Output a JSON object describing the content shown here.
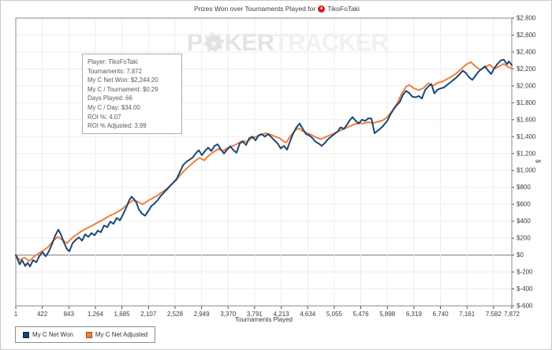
{
  "title": {
    "text": "Prizes Won over Tournaments Played for",
    "player": "TikoFoTaki"
  },
  "icons": {
    "title_chip_spade": "♠",
    "watermark_chip_spade": "♠"
  },
  "watermark": {
    "left": "P",
    "mid": "KER",
    "right": "TRACKER"
  },
  "info_box": {
    "lines": [
      "Player: TikoFoTaki",
      "Tournaments: 7,872",
      "My C Net Won: $2,244.20",
      "My C / Tournament: $0.29",
      "Days Played: 66",
      "My C / Day: $34.00",
      "ROI %: 4.07",
      "ROI % Adjusted: 3.99"
    ]
  },
  "legend": {
    "items": [
      {
        "label": "My C Net Won",
        "color": "#17456e"
      },
      {
        "label": "My C Net Adjusted",
        "color": "#ee7f3b"
      }
    ]
  },
  "colors": {
    "net_won_line": "#1a4876",
    "net_adjusted_line": "#ee7f3b",
    "grid": "#ededed",
    "zero_line": "#7a7a7a",
    "plot_border": "#9b9b9b",
    "tick": "#4a4a4a",
    "tick_label": "#3c3c3c"
  },
  "chart_data": {
    "type": "line",
    "title": "Prizes Won over Tournaments Played for TikoFoTaki",
    "xlabel": "Tournaments Played",
    "ylabel": "$",
    "grid": true,
    "legend_position": "bottom-left",
    "xlim": [
      1,
      7872
    ],
    "ylim": [
      -600,
      2800
    ],
    "x_ticks": [
      1,
      422,
      843,
      1264,
      1685,
      2107,
      2528,
      2949,
      3370,
      3791,
      4213,
      4634,
      5055,
      5476,
      5898,
      6319,
      6740,
      7161,
      7582,
      7872
    ],
    "x_tick_labels": [
      "1",
      "422",
      "843",
      "1,264",
      "1,685",
      "2,107",
      "2,528",
      "2,949",
      "3,370",
      "3,791",
      "4,213",
      "4,634",
      "5,055",
      "5,476",
      "5,898",
      "6,319",
      "6,740",
      "7,161",
      "7,582",
      "7,872"
    ],
    "y_ticks": [
      -600,
      -400,
      -200,
      0,
      200,
      400,
      600,
      800,
      1000,
      1200,
      1400,
      1600,
      1800,
      2000,
      2200,
      2400,
      2600,
      2800
    ],
    "y_tick_labels": [
      "$-600",
      "$-400",
      "$-200",
      "$0",
      "$200",
      "$400",
      "$600",
      "$800",
      "$1,000",
      "$1,200",
      "$1,400",
      "$1,600",
      "$1,800",
      "$2,000",
      "$2,200",
      "$2,400",
      "$2,600",
      "$2,800"
    ],
    "series": [
      {
        "name": "My C Net Adjusted",
        "color": "#ee7f3b",
        "points": [
          [
            1,
            0
          ],
          [
            64,
            -60
          ],
          [
            139,
            -30
          ],
          [
            214,
            -70
          ],
          [
            289,
            -20
          ],
          [
            364,
            20
          ],
          [
            439,
            55
          ],
          [
            514,
            95
          ],
          [
            589,
            165
          ],
          [
            664,
            215
          ],
          [
            739,
            180
          ],
          [
            814,
            140
          ],
          [
            889,
            200
          ],
          [
            964,
            240
          ],
          [
            1039,
            280
          ],
          [
            1114,
            310
          ],
          [
            1190,
            340
          ],
          [
            1265,
            370
          ],
          [
            1340,
            400
          ],
          [
            1415,
            430
          ],
          [
            1490,
            465
          ],
          [
            1565,
            490
          ],
          [
            1640,
            520
          ],
          [
            1715,
            560
          ],
          [
            1790,
            610
          ],
          [
            1866,
            650
          ],
          [
            1941,
            630
          ],
          [
            2016,
            600
          ],
          [
            2091,
            640
          ],
          [
            2166,
            670
          ],
          [
            2241,
            700
          ],
          [
            2316,
            740
          ],
          [
            2391,
            780
          ],
          [
            2466,
            830
          ],
          [
            2541,
            880
          ],
          [
            2617,
            950
          ],
          [
            2692,
            1010
          ],
          [
            2767,
            1060
          ],
          [
            2842,
            1110
          ],
          [
            2917,
            1150
          ],
          [
            2992,
            1120
          ],
          [
            3067,
            1180
          ],
          [
            3142,
            1220
          ],
          [
            3217,
            1255
          ],
          [
            3292,
            1230
          ],
          [
            3368,
            1270
          ],
          [
            3443,
            1290
          ],
          [
            3518,
            1315
          ],
          [
            3593,
            1350
          ],
          [
            3668,
            1340
          ],
          [
            3743,
            1380
          ],
          [
            3818,
            1400
          ],
          [
            3893,
            1420
          ],
          [
            3968,
            1440
          ],
          [
            4043,
            1425
          ],
          [
            4118,
            1400
          ],
          [
            4193,
            1380
          ],
          [
            4243,
            1350
          ],
          [
            4293,
            1330
          ],
          [
            4344,
            1390
          ],
          [
            4394,
            1440
          ],
          [
            4444,
            1480
          ],
          [
            4494,
            1500
          ],
          [
            4544,
            1470
          ],
          [
            4619,
            1445
          ],
          [
            4694,
            1420
          ],
          [
            4769,
            1390
          ],
          [
            4844,
            1370
          ],
          [
            4919,
            1395
          ],
          [
            4994,
            1420
          ],
          [
            5069,
            1445
          ],
          [
            5145,
            1470
          ],
          [
            5220,
            1495
          ],
          [
            5295,
            1520
          ],
          [
            5370,
            1545
          ],
          [
            5445,
            1560
          ],
          [
            5520,
            1555
          ],
          [
            5595,
            1570
          ],
          [
            5670,
            1560
          ],
          [
            5745,
            1575
          ],
          [
            5820,
            1590
          ],
          [
            5895,
            1630
          ],
          [
            5970,
            1700
          ],
          [
            6045,
            1780
          ],
          [
            6120,
            1900
          ],
          [
            6195,
            1990
          ],
          [
            6245,
            2010
          ],
          [
            6320,
            1970
          ],
          [
            6395,
            1950
          ],
          [
            6470,
            1975
          ],
          [
            6545,
            2030
          ],
          [
            6620,
            2000
          ],
          [
            6695,
            2035
          ],
          [
            6770,
            2050
          ],
          [
            6845,
            2080
          ],
          [
            6920,
            2110
          ],
          [
            6996,
            2150
          ],
          [
            7071,
            2200
          ],
          [
            7146,
            2250
          ],
          [
            7221,
            2280
          ],
          [
            7296,
            2230
          ],
          [
            7371,
            2190
          ],
          [
            7446,
            2220
          ],
          [
            7521,
            2250
          ],
          [
            7596,
            2200
          ],
          [
            7671,
            2230
          ],
          [
            7746,
            2260
          ],
          [
            7811,
            2225
          ],
          [
            7872,
            2205
          ]
        ]
      },
      {
        "name": "My C Net Won",
        "color": "#1a4876",
        "points": [
          [
            1,
            0
          ],
          [
            26,
            -40
          ],
          [
            64,
            -110
          ],
          [
            101,
            -60
          ],
          [
            151,
            -130
          ],
          [
            189,
            -90
          ],
          [
            226,
            -135
          ],
          [
            276,
            -60
          ],
          [
            326,
            -85
          ],
          [
            376,
            -10
          ],
          [
            426,
            35
          ],
          [
            477,
            -15
          ],
          [
            527,
            45
          ],
          [
            577,
            130
          ],
          [
            627,
            230
          ],
          [
            677,
            300
          ],
          [
            714,
            250
          ],
          [
            764,
            150
          ],
          [
            814,
            70
          ],
          [
            852,
            45
          ],
          [
            902,
            140
          ],
          [
            952,
            180
          ],
          [
            1002,
            210
          ],
          [
            1052,
            170
          ],
          [
            1102,
            245
          ],
          [
            1152,
            215
          ],
          [
            1202,
            260
          ],
          [
            1252,
            235
          ],
          [
            1303,
            290
          ],
          [
            1353,
            270
          ],
          [
            1403,
            350
          ],
          [
            1453,
            330
          ],
          [
            1503,
            395
          ],
          [
            1553,
            370
          ],
          [
            1603,
            440
          ],
          [
            1653,
            410
          ],
          [
            1703,
            480
          ],
          [
            1753,
            560
          ],
          [
            1803,
            650
          ],
          [
            1841,
            690
          ],
          [
            1878,
            660
          ],
          [
            1916,
            620
          ],
          [
            1953,
            540
          ],
          [
            2003,
            490
          ],
          [
            2053,
            465
          ],
          [
            2103,
            520
          ],
          [
            2153,
            580
          ],
          [
            2203,
            610
          ],
          [
            2254,
            650
          ],
          [
            2304,
            700
          ],
          [
            2354,
            740
          ],
          [
            2404,
            780
          ],
          [
            2454,
            820
          ],
          [
            2504,
            860
          ],
          [
            2554,
            900
          ],
          [
            2604,
            980
          ],
          [
            2654,
            1060
          ],
          [
            2704,
            1100
          ],
          [
            2754,
            1125
          ],
          [
            2804,
            1150
          ],
          [
            2854,
            1200
          ],
          [
            2904,
            1240
          ],
          [
            2954,
            1180
          ],
          [
            3004,
            1230
          ],
          [
            3054,
            1270
          ],
          [
            3104,
            1230
          ],
          [
            3154,
            1290
          ],
          [
            3205,
            1310
          ],
          [
            3255,
            1250
          ],
          [
            3305,
            1200
          ],
          [
            3355,
            1245
          ],
          [
            3405,
            1285
          ],
          [
            3455,
            1240
          ],
          [
            3505,
            1210
          ],
          [
            3555,
            1320
          ],
          [
            3605,
            1340
          ],
          [
            3655,
            1300
          ],
          [
            3705,
            1380
          ],
          [
            3755,
            1400
          ],
          [
            3805,
            1355
          ],
          [
            3855,
            1415
          ],
          [
            3905,
            1430
          ],
          [
            3955,
            1400
          ],
          [
            4005,
            1430
          ],
          [
            4055,
            1395
          ],
          [
            4105,
            1355
          ],
          [
            4156,
            1320
          ],
          [
            4206,
            1260
          ],
          [
            4256,
            1290
          ],
          [
            4306,
            1245
          ],
          [
            4356,
            1350
          ],
          [
            4406,
            1440
          ],
          [
            4456,
            1510
          ],
          [
            4506,
            1555
          ],
          [
            4556,
            1490
          ],
          [
            4606,
            1430
          ],
          [
            4656,
            1415
          ],
          [
            4706,
            1385
          ],
          [
            4756,
            1340
          ],
          [
            4806,
            1320
          ],
          [
            4856,
            1290
          ],
          [
            4906,
            1325
          ],
          [
            4956,
            1370
          ],
          [
            5006,
            1400
          ],
          [
            5056,
            1430
          ],
          [
            5107,
            1460
          ],
          [
            5157,
            1510
          ],
          [
            5207,
            1490
          ],
          [
            5257,
            1540
          ],
          [
            5307,
            1600
          ],
          [
            5345,
            1630
          ],
          [
            5395,
            1585
          ],
          [
            5445,
            1555
          ],
          [
            5495,
            1600
          ],
          [
            5545,
            1585
          ],
          [
            5595,
            1615
          ],
          [
            5645,
            1615
          ],
          [
            5695,
            1440
          ],
          [
            5745,
            1470
          ],
          [
            5795,
            1500
          ],
          [
            5845,
            1540
          ],
          [
            5895,
            1585
          ],
          [
            5945,
            1660
          ],
          [
            5995,
            1720
          ],
          [
            6045,
            1770
          ],
          [
            6095,
            1810
          ],
          [
            6145,
            1895
          ],
          [
            6195,
            1940
          ],
          [
            6245,
            1915
          ],
          [
            6295,
            1870
          ],
          [
            6345,
            1865
          ],
          [
            6395,
            1880
          ],
          [
            6445,
            1850
          ],
          [
            6495,
            1950
          ],
          [
            6545,
            1990
          ],
          [
            6595,
            2020
          ],
          [
            6645,
            1910
          ],
          [
            6695,
            1955
          ],
          [
            6745,
            1970
          ],
          [
            6795,
            1980
          ],
          [
            6845,
            2010
          ],
          [
            6895,
            2040
          ],
          [
            6945,
            2070
          ],
          [
            6996,
            2100
          ],
          [
            7046,
            2140
          ],
          [
            7096,
            2180
          ],
          [
            7146,
            2150
          ],
          [
            7196,
            2100
          ],
          [
            7246,
            2070
          ],
          [
            7296,
            2120
          ],
          [
            7346,
            2170
          ],
          [
            7396,
            2200
          ],
          [
            7446,
            2230
          ],
          [
            7496,
            2180
          ],
          [
            7546,
            2140
          ],
          [
            7596,
            2210
          ],
          [
            7646,
            2260
          ],
          [
            7696,
            2300
          ],
          [
            7746,
            2310
          ],
          [
            7796,
            2255
          ],
          [
            7826,
            2290
          ],
          [
            7872,
            2244
          ]
        ]
      }
    ]
  }
}
